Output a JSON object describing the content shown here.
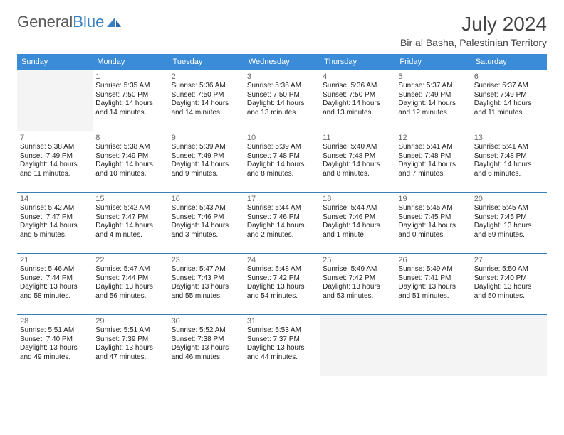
{
  "brand": {
    "name1": "General",
    "name2": "Blue"
  },
  "title": "July 2024",
  "location": "Bir al Basha, Palestinian Territory",
  "colors": {
    "header_bg": "#3a8bd8",
    "header_fg": "#ffffff",
    "row_border": "#3a7fb5",
    "brand_gray": "#5b5b5b",
    "brand_blue": "#3a7fc4",
    "text": "#222222",
    "empty_bg": "#f4f4f4"
  },
  "dow": [
    "Sunday",
    "Monday",
    "Tuesday",
    "Wednesday",
    "Thursday",
    "Friday",
    "Saturday"
  ],
  "weeks": [
    [
      null,
      {
        "n": "1",
        "sr": "Sunrise: 5:35 AM",
        "ss": "Sunset: 7:50 PM",
        "d1": "Daylight: 14 hours",
        "d2": "and 14 minutes."
      },
      {
        "n": "2",
        "sr": "Sunrise: 5:36 AM",
        "ss": "Sunset: 7:50 PM",
        "d1": "Daylight: 14 hours",
        "d2": "and 14 minutes."
      },
      {
        "n": "3",
        "sr": "Sunrise: 5:36 AM",
        "ss": "Sunset: 7:50 PM",
        "d1": "Daylight: 14 hours",
        "d2": "and 13 minutes."
      },
      {
        "n": "4",
        "sr": "Sunrise: 5:36 AM",
        "ss": "Sunset: 7:50 PM",
        "d1": "Daylight: 14 hours",
        "d2": "and 13 minutes."
      },
      {
        "n": "5",
        "sr": "Sunrise: 5:37 AM",
        "ss": "Sunset: 7:49 PM",
        "d1": "Daylight: 14 hours",
        "d2": "and 12 minutes."
      },
      {
        "n": "6",
        "sr": "Sunrise: 5:37 AM",
        "ss": "Sunset: 7:49 PM",
        "d1": "Daylight: 14 hours",
        "d2": "and 11 minutes."
      }
    ],
    [
      {
        "n": "7",
        "sr": "Sunrise: 5:38 AM",
        "ss": "Sunset: 7:49 PM",
        "d1": "Daylight: 14 hours",
        "d2": "and 11 minutes."
      },
      {
        "n": "8",
        "sr": "Sunrise: 5:38 AM",
        "ss": "Sunset: 7:49 PM",
        "d1": "Daylight: 14 hours",
        "d2": "and 10 minutes."
      },
      {
        "n": "9",
        "sr": "Sunrise: 5:39 AM",
        "ss": "Sunset: 7:49 PM",
        "d1": "Daylight: 14 hours",
        "d2": "and 9 minutes."
      },
      {
        "n": "10",
        "sr": "Sunrise: 5:39 AM",
        "ss": "Sunset: 7:48 PM",
        "d1": "Daylight: 14 hours",
        "d2": "and 8 minutes."
      },
      {
        "n": "11",
        "sr": "Sunrise: 5:40 AM",
        "ss": "Sunset: 7:48 PM",
        "d1": "Daylight: 14 hours",
        "d2": "and 8 minutes."
      },
      {
        "n": "12",
        "sr": "Sunrise: 5:41 AM",
        "ss": "Sunset: 7:48 PM",
        "d1": "Daylight: 14 hours",
        "d2": "and 7 minutes."
      },
      {
        "n": "13",
        "sr": "Sunrise: 5:41 AM",
        "ss": "Sunset: 7:48 PM",
        "d1": "Daylight: 14 hours",
        "d2": "and 6 minutes."
      }
    ],
    [
      {
        "n": "14",
        "sr": "Sunrise: 5:42 AM",
        "ss": "Sunset: 7:47 PM",
        "d1": "Daylight: 14 hours",
        "d2": "and 5 minutes."
      },
      {
        "n": "15",
        "sr": "Sunrise: 5:42 AM",
        "ss": "Sunset: 7:47 PM",
        "d1": "Daylight: 14 hours",
        "d2": "and 4 minutes."
      },
      {
        "n": "16",
        "sr": "Sunrise: 5:43 AM",
        "ss": "Sunset: 7:46 PM",
        "d1": "Daylight: 14 hours",
        "d2": "and 3 minutes."
      },
      {
        "n": "17",
        "sr": "Sunrise: 5:44 AM",
        "ss": "Sunset: 7:46 PM",
        "d1": "Daylight: 14 hours",
        "d2": "and 2 minutes."
      },
      {
        "n": "18",
        "sr": "Sunrise: 5:44 AM",
        "ss": "Sunset: 7:46 PM",
        "d1": "Daylight: 14 hours",
        "d2": "and 1 minute."
      },
      {
        "n": "19",
        "sr": "Sunrise: 5:45 AM",
        "ss": "Sunset: 7:45 PM",
        "d1": "Daylight: 14 hours",
        "d2": "and 0 minutes."
      },
      {
        "n": "20",
        "sr": "Sunrise: 5:45 AM",
        "ss": "Sunset: 7:45 PM",
        "d1": "Daylight: 13 hours",
        "d2": "and 59 minutes."
      }
    ],
    [
      {
        "n": "21",
        "sr": "Sunrise: 5:46 AM",
        "ss": "Sunset: 7:44 PM",
        "d1": "Daylight: 13 hours",
        "d2": "and 58 minutes."
      },
      {
        "n": "22",
        "sr": "Sunrise: 5:47 AM",
        "ss": "Sunset: 7:44 PM",
        "d1": "Daylight: 13 hours",
        "d2": "and 56 minutes."
      },
      {
        "n": "23",
        "sr": "Sunrise: 5:47 AM",
        "ss": "Sunset: 7:43 PM",
        "d1": "Daylight: 13 hours",
        "d2": "and 55 minutes."
      },
      {
        "n": "24",
        "sr": "Sunrise: 5:48 AM",
        "ss": "Sunset: 7:42 PM",
        "d1": "Daylight: 13 hours",
        "d2": "and 54 minutes."
      },
      {
        "n": "25",
        "sr": "Sunrise: 5:49 AM",
        "ss": "Sunset: 7:42 PM",
        "d1": "Daylight: 13 hours",
        "d2": "and 53 minutes."
      },
      {
        "n": "26",
        "sr": "Sunrise: 5:49 AM",
        "ss": "Sunset: 7:41 PM",
        "d1": "Daylight: 13 hours",
        "d2": "and 51 minutes."
      },
      {
        "n": "27",
        "sr": "Sunrise: 5:50 AM",
        "ss": "Sunset: 7:40 PM",
        "d1": "Daylight: 13 hours",
        "d2": "and 50 minutes."
      }
    ],
    [
      {
        "n": "28",
        "sr": "Sunrise: 5:51 AM",
        "ss": "Sunset: 7:40 PM",
        "d1": "Daylight: 13 hours",
        "d2": "and 49 minutes."
      },
      {
        "n": "29",
        "sr": "Sunrise: 5:51 AM",
        "ss": "Sunset: 7:39 PM",
        "d1": "Daylight: 13 hours",
        "d2": "and 47 minutes."
      },
      {
        "n": "30",
        "sr": "Sunrise: 5:52 AM",
        "ss": "Sunset: 7:38 PM",
        "d1": "Daylight: 13 hours",
        "d2": "and 46 minutes."
      },
      {
        "n": "31",
        "sr": "Sunrise: 5:53 AM",
        "ss": "Sunset: 7:37 PM",
        "d1": "Daylight: 13 hours",
        "d2": "and 44 minutes."
      },
      null,
      null,
      null
    ]
  ]
}
